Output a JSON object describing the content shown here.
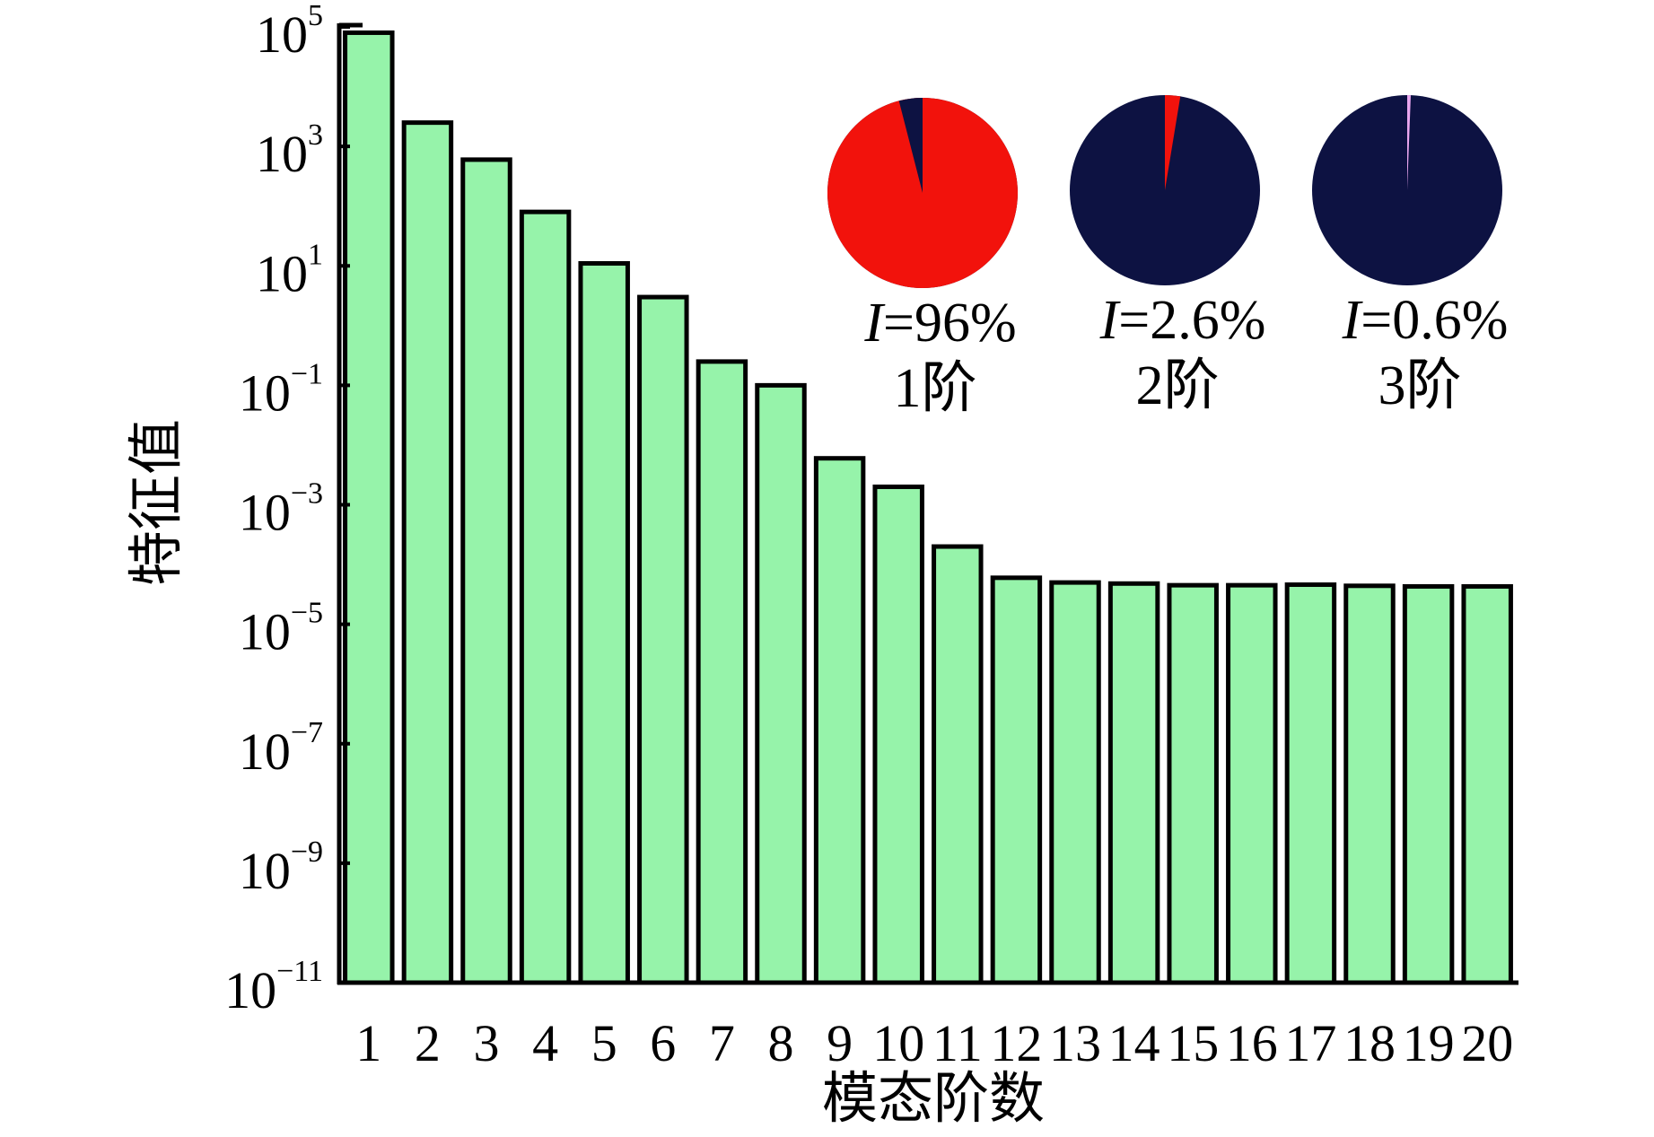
{
  "chart_data": {
    "type": "bar",
    "xlabel": "模态阶数",
    "ylabel": "特征值",
    "yscale": "log",
    "ylim": [
      1e-11,
      100000
    ],
    "y_ticks": [
      {
        "base": "10",
        "exp": "5"
      },
      {
        "base": "10",
        "exp": "3"
      },
      {
        "base": "10",
        "exp": "1"
      },
      {
        "base": "10",
        "exp": "−1"
      },
      {
        "base": "10",
        "exp": "−3"
      },
      {
        "base": "10",
        "exp": "−5"
      },
      {
        "base": "10",
        "exp": "−7"
      },
      {
        "base": "10",
        "exp": "−9"
      },
      {
        "base": "10",
        "exp": "−11"
      }
    ],
    "y_tick_values": [
      100000,
      1000,
      10,
      0.1,
      0.001,
      1e-05,
      1e-07,
      1e-09,
      1e-11
    ],
    "categories": [
      "1",
      "2",
      "3",
      "4",
      "5",
      "6",
      "7",
      "8",
      "9",
      "10",
      "11",
      "12",
      "13",
      "14",
      "15",
      "16",
      "17",
      "18",
      "19",
      "20"
    ],
    "values": [
      80000,
      2500,
      600,
      80,
      11,
      3,
      0.25,
      0.1,
      0.006,
      0.002,
      0.0002,
      6e-05,
      5e-05,
      4.8e-05,
      4.5e-05,
      4.5e-05,
      4.6e-05,
      4.4e-05,
      4.3e-05,
      4.3e-05
    ],
    "bar_color": "#96f3aa",
    "grid": false,
    "insets": [
      {
        "type": "pie",
        "symbol": "I",
        "value_text": "=96%",
        "order_label": "1阶",
        "highlight_fraction": 0.96,
        "highlight_color": "#f2120c",
        "base_color": "#0d1242"
      },
      {
        "type": "pie",
        "symbol": "I",
        "value_text": "=2.6%",
        "order_label": "2阶",
        "highlight_fraction": 0.026,
        "highlight_color": "#f2120c",
        "base_color": "#0d1242"
      },
      {
        "type": "pie",
        "symbol": "I",
        "value_text": "=0.6%",
        "order_label": "3阶",
        "highlight_fraction": 0.006,
        "highlight_color": "#e9a6ee",
        "base_color": "#0d1242"
      }
    ]
  }
}
